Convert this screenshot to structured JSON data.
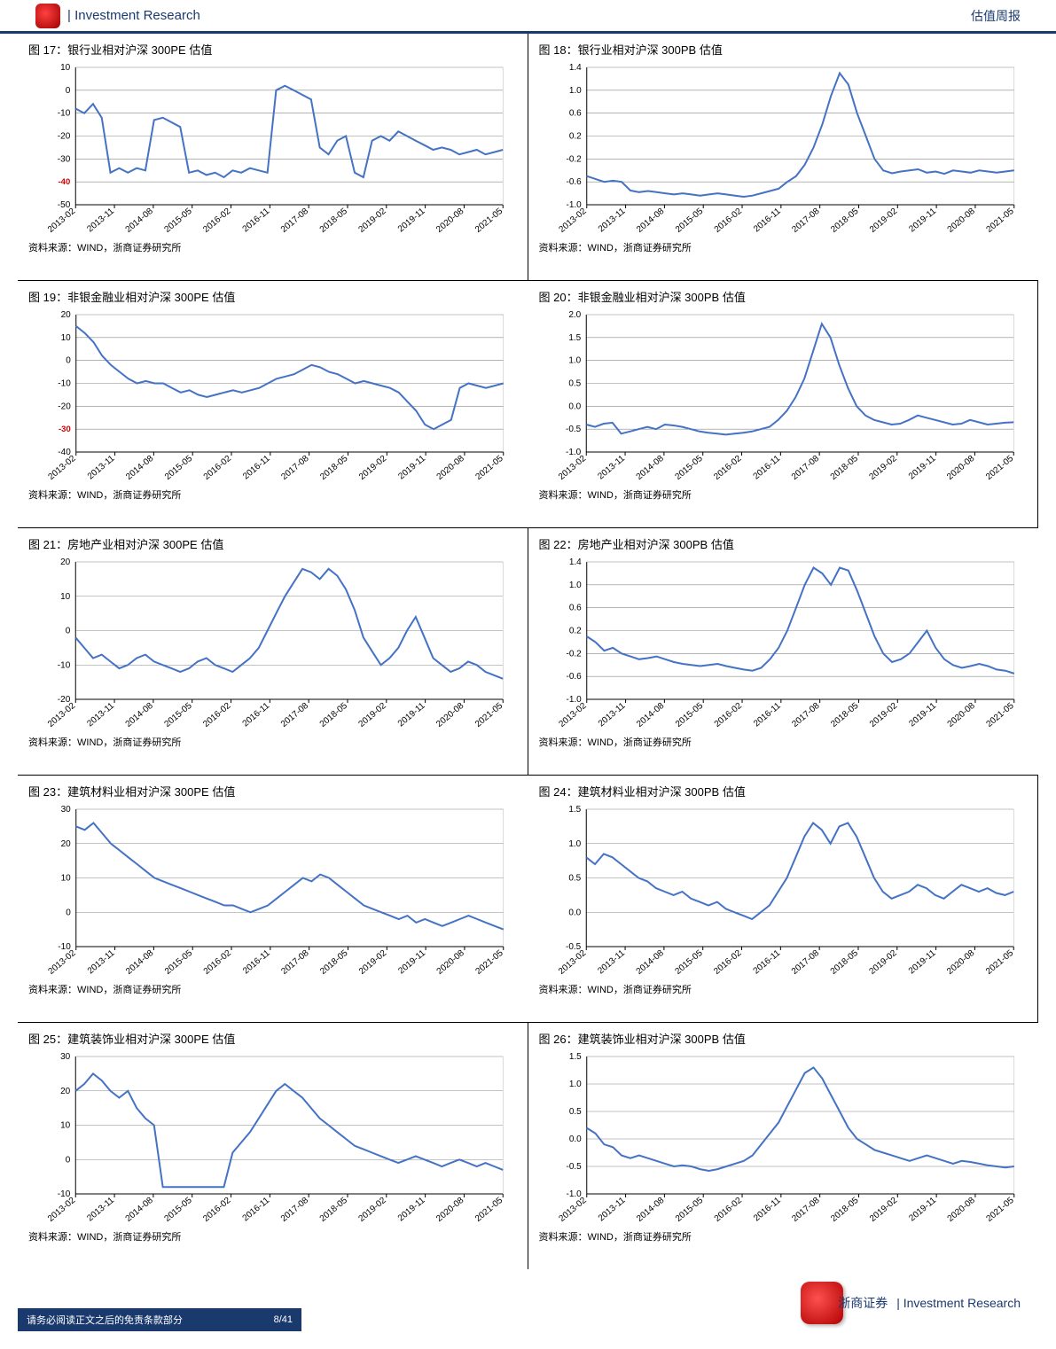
{
  "header": {
    "left_text": "| Investment Research",
    "right_text": "估值周报"
  },
  "footer": {
    "disclaimer": "请务必阅读正文之后的免责条款部分",
    "brand_cn": "浙商证券",
    "brand_en": "| Investment Research",
    "page_label": "8/41"
  },
  "source_text": "资料来源：WIND，浙商证券研究所",
  "common": {
    "xticks": [
      "2013-02",
      "2013-11",
      "2014-08",
      "2015-05",
      "2016-02",
      "2016-11",
      "2017-08",
      "2018-05",
      "2019-02",
      "2019-11",
      "2020-08",
      "2021-05"
    ],
    "line_color": "#4472c4",
    "grid_color": "#bfbfbf",
    "axis_color": "#000000",
    "highlight_color": "#d00000",
    "background": "#ffffff",
    "line_width": 2,
    "font_size_axis": 10,
    "font_size_title": 13
  },
  "charts": [
    {
      "id": "c1",
      "title": "图 17：银行业相对沪深 300PE 估值",
      "type": "line",
      "ylim": [
        -50,
        10
      ],
      "ytick_step": 10,
      "highlight_tick": -40,
      "values": [
        -8,
        -10,
        -6,
        -12,
        -36,
        -34,
        -36,
        -34,
        -35,
        -13,
        -12,
        -14,
        -16,
        -36,
        -35,
        -37,
        -36,
        -38,
        -35,
        -36,
        -34,
        -35,
        -36,
        0,
        2,
        0,
        -2,
        -4,
        -25,
        -28,
        -22,
        -20,
        -36,
        -38,
        -22,
        -20,
        -22,
        -18,
        -20,
        -22,
        -24,
        -26,
        -25,
        -26,
        -28,
        -27,
        -26,
        -28,
        -27,
        -26
      ]
    },
    {
      "id": "c2",
      "title": "图 18：银行业相对沪深 300PB 估值",
      "type": "line",
      "ylim": [
        -1.0,
        1.4
      ],
      "ytick_step": 0.4,
      "values": [
        -0.5,
        -0.55,
        -0.6,
        -0.58,
        -0.6,
        -0.75,
        -0.78,
        -0.76,
        -0.78,
        -0.8,
        -0.82,
        -0.8,
        -0.82,
        -0.84,
        -0.82,
        -0.8,
        -0.82,
        -0.84,
        -0.86,
        -0.84,
        -0.8,
        -0.76,
        -0.72,
        -0.6,
        -0.5,
        -0.3,
        0.0,
        0.4,
        0.9,
        1.3,
        1.1,
        0.6,
        0.2,
        -0.2,
        -0.4,
        -0.45,
        -0.42,
        -0.4,
        -0.38,
        -0.44,
        -0.42,
        -0.46,
        -0.4,
        -0.42,
        -0.44,
        -0.4,
        -0.42,
        -0.44,
        -0.42,
        -0.4
      ]
    },
    {
      "id": "c3",
      "title": "图 19：非银金融业相对沪深 300PE 估值",
      "type": "line",
      "ylim": [
        -40,
        20
      ],
      "ytick_step": 10,
      "highlight_tick": -30,
      "values": [
        15,
        12,
        8,
        2,
        -2,
        -5,
        -8,
        -10,
        -9,
        -10,
        -10,
        -12,
        -14,
        -13,
        -15,
        -16,
        -15,
        -14,
        -13,
        -14,
        -13,
        -12,
        -10,
        -8,
        -7,
        -6,
        -4,
        -2,
        -3,
        -5,
        -6,
        -8,
        -10,
        -9,
        -10,
        -11,
        -12,
        -14,
        -18,
        -22,
        -28,
        -30,
        -28,
        -26,
        -12,
        -10,
        -11,
        -12,
        -11,
        -10
      ]
    },
    {
      "id": "c4",
      "title": "图 20：非银金融业相对沪深 300PB 估值",
      "type": "line",
      "ylim": [
        -1.0,
        2.0
      ],
      "ytick_step": 0.5,
      "values": [
        -0.4,
        -0.45,
        -0.38,
        -0.36,
        -0.6,
        -0.55,
        -0.5,
        -0.45,
        -0.5,
        -0.4,
        -0.42,
        -0.45,
        -0.5,
        -0.55,
        -0.58,
        -0.6,
        -0.62,
        -0.6,
        -0.58,
        -0.55,
        -0.5,
        -0.45,
        -0.3,
        -0.1,
        0.2,
        0.6,
        1.2,
        1.8,
        1.5,
        0.9,
        0.4,
        0.0,
        -0.2,
        -0.3,
        -0.35,
        -0.4,
        -0.38,
        -0.3,
        -0.2,
        -0.25,
        -0.3,
        -0.35,
        -0.4,
        -0.38,
        -0.3,
        -0.35,
        -0.4,
        -0.38,
        -0.36,
        -0.35
      ]
    },
    {
      "id": "c5",
      "title": "图 21：房地产业相对沪深 300PE 估值",
      "type": "line",
      "ylim": [
        -20,
        20
      ],
      "ytick_step": 10,
      "values": [
        -2,
        -5,
        -8,
        -7,
        -9,
        -11,
        -10,
        -8,
        -7,
        -9,
        -10,
        -11,
        -12,
        -11,
        -9,
        -8,
        -10,
        -11,
        -12,
        -10,
        -8,
        -5,
        0,
        5,
        10,
        14,
        18,
        17,
        15,
        18,
        16,
        12,
        6,
        -2,
        -6,
        -10,
        -8,
        -5,
        0,
        4,
        -2,
        -8,
        -10,
        -12,
        -11,
        -9,
        -10,
        -12,
        -13,
        -14
      ]
    },
    {
      "id": "c6",
      "title": "图 22：房地产业相对沪深 300PB 估值",
      "type": "line",
      "ylim": [
        -1.0,
        1.4
      ],
      "ytick_step": 0.4,
      "values": [
        0.1,
        0.0,
        -0.15,
        -0.1,
        -0.2,
        -0.25,
        -0.3,
        -0.28,
        -0.25,
        -0.3,
        -0.35,
        -0.38,
        -0.4,
        -0.42,
        -0.4,
        -0.38,
        -0.42,
        -0.45,
        -0.48,
        -0.5,
        -0.45,
        -0.3,
        -0.1,
        0.2,
        0.6,
        1.0,
        1.3,
        1.2,
        1.0,
        1.3,
        1.25,
        0.9,
        0.5,
        0.1,
        -0.2,
        -0.35,
        -0.3,
        -0.2,
        0.0,
        0.2,
        -0.1,
        -0.3,
        -0.4,
        -0.45,
        -0.42,
        -0.38,
        -0.42,
        -0.48,
        -0.5,
        -0.55
      ]
    },
    {
      "id": "c7",
      "title": "图 23：建筑材料业相对沪深 300PE 估值",
      "type": "line",
      "ylim": [
        -10,
        30
      ],
      "ytick_step": 10,
      "values": [
        25,
        24,
        26,
        23,
        20,
        18,
        16,
        14,
        12,
        10,
        9,
        8,
        7,
        6,
        5,
        4,
        3,
        2,
        2,
        1,
        0,
        1,
        2,
        4,
        6,
        8,
        10,
        9,
        11,
        10,
        8,
        6,
        4,
        2,
        1,
        0,
        -1,
        -2,
        -1,
        -3,
        -2,
        -3,
        -4,
        -3,
        -2,
        -1,
        -2,
        -3,
        -4,
        -5
      ]
    },
    {
      "id": "c8",
      "title": "图 24：建筑材料业相对沪深 300PB 估值",
      "type": "line",
      "ylim": [
        -0.5,
        1.5
      ],
      "ytick_step": 0.5,
      "values": [
        0.8,
        0.7,
        0.85,
        0.8,
        0.7,
        0.6,
        0.5,
        0.45,
        0.35,
        0.3,
        0.25,
        0.3,
        0.2,
        0.15,
        0.1,
        0.15,
        0.05,
        0.0,
        -0.05,
        -0.1,
        0.0,
        0.1,
        0.3,
        0.5,
        0.8,
        1.1,
        1.3,
        1.2,
        1.0,
        1.25,
        1.3,
        1.1,
        0.8,
        0.5,
        0.3,
        0.2,
        0.25,
        0.3,
        0.4,
        0.35,
        0.25,
        0.2,
        0.3,
        0.4,
        0.35,
        0.3,
        0.35,
        0.28,
        0.25,
        0.3
      ]
    },
    {
      "id": "c9",
      "title": "图 25：建筑装饰业相对沪深 300PE 估值",
      "type": "line",
      "ylim": [
        -10,
        30
      ],
      "ytick_step": 10,
      "values": [
        20,
        22,
        25,
        23,
        20,
        18,
        20,
        15,
        12,
        10,
        -8,
        -8,
        -8,
        -8,
        -8,
        -8,
        -8,
        -8,
        2,
        5,
        8,
        12,
        16,
        20,
        22,
        20,
        18,
        15,
        12,
        10,
        8,
        6,
        4,
        3,
        2,
        1,
        0,
        -1,
        0,
        1,
        0,
        -1,
        -2,
        -1,
        0,
        -1,
        -2,
        -1,
        -2,
        -3
      ]
    },
    {
      "id": "c10",
      "title": "图 26：建筑装饰业相对沪深 300PB 估值",
      "type": "line",
      "ylim": [
        -1.0,
        1.5
      ],
      "ytick_step": 0.5,
      "values": [
        0.2,
        0.1,
        -0.1,
        -0.15,
        -0.3,
        -0.35,
        -0.3,
        -0.35,
        -0.4,
        -0.45,
        -0.5,
        -0.48,
        -0.5,
        -0.55,
        -0.58,
        -0.55,
        -0.5,
        -0.45,
        -0.4,
        -0.3,
        -0.1,
        0.1,
        0.3,
        0.6,
        0.9,
        1.2,
        1.3,
        1.1,
        0.8,
        0.5,
        0.2,
        0.0,
        -0.1,
        -0.2,
        -0.25,
        -0.3,
        -0.35,
        -0.4,
        -0.35,
        -0.3,
        -0.35,
        -0.4,
        -0.45,
        -0.4,
        -0.42,
        -0.45,
        -0.48,
        -0.5,
        -0.52,
        -0.5
      ]
    }
  ]
}
